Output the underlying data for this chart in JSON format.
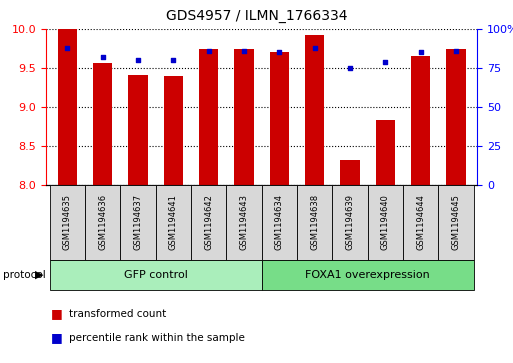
{
  "title": "GDS4957 / ILMN_1766334",
  "samples": [
    "GSM1194635",
    "GSM1194636",
    "GSM1194637",
    "GSM1194641",
    "GSM1194642",
    "GSM1194643",
    "GSM1194634",
    "GSM1194638",
    "GSM1194639",
    "GSM1194640",
    "GSM1194644",
    "GSM1194645"
  ],
  "transformed_count": [
    10.0,
    9.56,
    9.41,
    9.4,
    9.74,
    9.75,
    9.7,
    9.93,
    8.32,
    8.83,
    9.66,
    9.74
  ],
  "percentile_rank": [
    88,
    82,
    80,
    80,
    86,
    86,
    85,
    88,
    75,
    79,
    85,
    86
  ],
  "groups": [
    {
      "label": "GFP control",
      "start": 0,
      "end": 6,
      "color": "#aaeebb"
    },
    {
      "label": "FOXA1 overexpression",
      "start": 6,
      "end": 12,
      "color": "#77dd88"
    }
  ],
  "ylim_left": [
    8,
    10
  ],
  "ylim_right": [
    0,
    100
  ],
  "yticks_left": [
    8,
    8.5,
    9,
    9.5,
    10
  ],
  "yticks_right": [
    0,
    25,
    50,
    75,
    100
  ],
  "bar_color": "#cc0000",
  "dot_color": "#0000cc",
  "bar_bottom": 8,
  "bar_width": 0.55,
  "protocol_label": "protocol",
  "legend_items": [
    {
      "color": "#cc0000",
      "label": "transformed count"
    },
    {
      "color": "#0000cc",
      "label": "percentile rank within the sample"
    }
  ]
}
